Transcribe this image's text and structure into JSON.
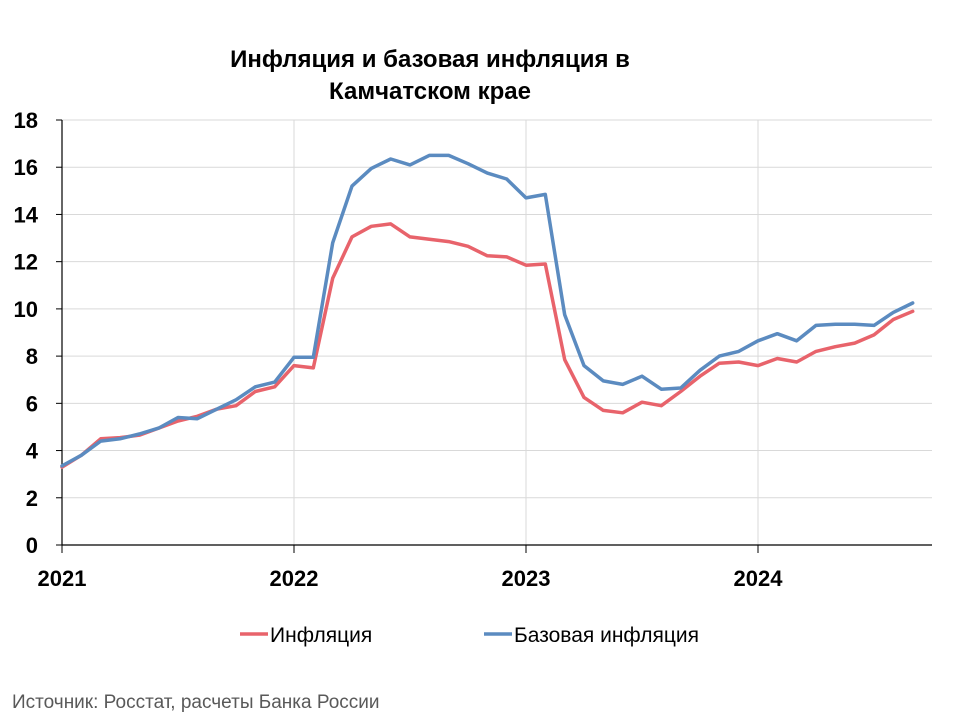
{
  "chart_data": {
    "type": "line",
    "title": [
      "Инфляция и базовая инфляция в",
      "Камчатском крае"
    ],
    "xlabel": "",
    "ylabel": "",
    "ylim": [
      0,
      18
    ],
    "yticks": [
      0,
      2,
      4,
      6,
      8,
      10,
      12,
      14,
      16,
      18
    ],
    "xlim": [
      "2021-01",
      "2024-10"
    ],
    "xtick_labels": [
      "2021",
      "2022",
      "2023",
      "2024"
    ],
    "grid": true,
    "legend_position": "bottom",
    "x": [
      "2021-01",
      "2021-02",
      "2021-03",
      "2021-04",
      "2021-05",
      "2021-06",
      "2021-07",
      "2021-08",
      "2021-09",
      "2021-10",
      "2021-11",
      "2021-12",
      "2022-01",
      "2022-02",
      "2022-03",
      "2022-04",
      "2022-05",
      "2022-06",
      "2022-07",
      "2022-08",
      "2022-09",
      "2022-10",
      "2022-11",
      "2022-12",
      "2023-01",
      "2023-02",
      "2023-03",
      "2023-04",
      "2023-05",
      "2023-06",
      "2023-07",
      "2023-08",
      "2023-09",
      "2023-10",
      "2023-11",
      "2023-12",
      "2024-01",
      "2024-02",
      "2024-03",
      "2024-04",
      "2024-05",
      "2024-06",
      "2024-07",
      "2024-08",
      "2024-09"
    ],
    "series": [
      {
        "name": "Инфляция",
        "color": "#E8636B",
        "values": [
          3.3,
          3.8,
          4.5,
          4.55,
          4.65,
          4.95,
          5.25,
          5.45,
          5.75,
          5.9,
          6.5,
          6.7,
          7.6,
          7.5,
          11.3,
          13.05,
          13.5,
          13.6,
          13.05,
          12.95,
          12.85,
          12.65,
          12.25,
          12.2,
          11.85,
          11.9,
          7.85,
          6.25,
          5.7,
          5.6,
          6.05,
          5.9,
          6.5,
          7.15,
          7.7,
          7.75,
          7.6,
          7.9,
          7.75,
          8.2,
          8.4,
          8.55,
          8.9,
          9.55,
          9.9
        ]
      },
      {
        "name": "Базовая инфляция",
        "color": "#5B8BC0",
        "values": [
          3.35,
          3.8,
          4.4,
          4.5,
          4.7,
          4.95,
          5.4,
          5.35,
          5.75,
          6.15,
          6.7,
          6.9,
          7.95,
          7.95,
          12.8,
          15.2,
          15.95,
          16.35,
          16.1,
          16.5,
          16.5,
          16.15,
          15.75,
          15.5,
          14.7,
          14.85,
          9.75,
          7.6,
          6.95,
          6.8,
          7.15,
          6.6,
          6.65,
          7.4,
          8.0,
          8.2,
          8.65,
          8.95,
          8.65,
          9.3,
          9.35,
          9.35,
          9.3,
          9.85,
          10.25
        ]
      }
    ]
  },
  "source_text": "Источник: Росстат, расчеты Банка России"
}
